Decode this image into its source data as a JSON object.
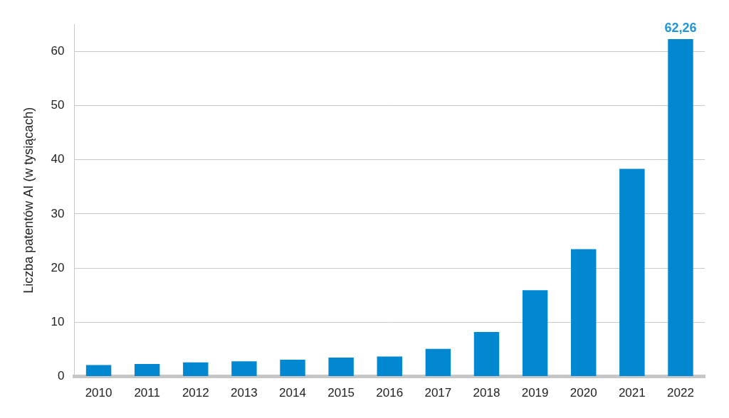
{
  "chart_data": {
    "type": "bar",
    "y_label": "Liczba patentów AI (w tysiącach)",
    "categories": [
      "2010",
      "2011",
      "2012",
      "2013",
      "2014",
      "2015",
      "2016",
      "2017",
      "2018",
      "2019",
      "2020",
      "2021",
      "2022"
    ],
    "values": [
      2.1,
      2.3,
      2.6,
      2.8,
      3.1,
      3.5,
      3.7,
      5.1,
      8.2,
      15.9,
      23.5,
      38.3,
      62.26
    ],
    "value_labels": [
      null,
      null,
      null,
      null,
      null,
      null,
      null,
      null,
      null,
      null,
      null,
      null,
      "62,26"
    ],
    "data_labels": true,
    "color": "#0288d1",
    "ylim": [
      0,
      65
    ],
    "yticks": [
      0,
      10,
      20,
      30,
      40,
      50,
      60
    ],
    "grid": true
  }
}
